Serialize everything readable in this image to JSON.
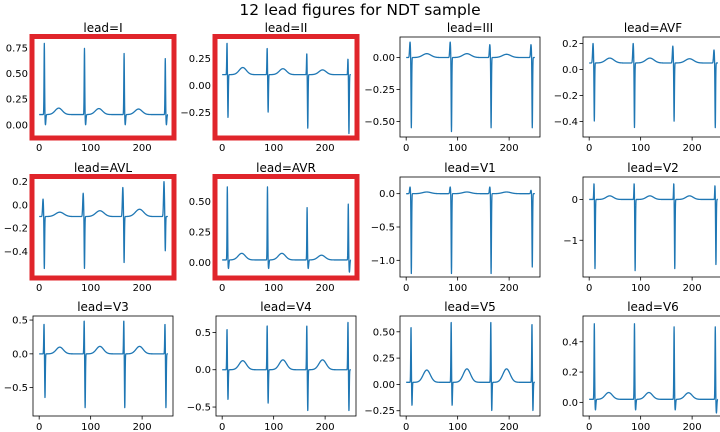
{
  "figure": {
    "title": "12 lead figures for NDT sample",
    "line_color": "#1f77b4",
    "highlight_color": "#e0252b"
  },
  "chart_data": [
    {
      "type": "line",
      "title": "lead=I",
      "highlighted": true,
      "xlim": [
        -12,
        260
      ],
      "ylim": [
        -0.12,
        0.86
      ],
      "xticks": [
        0,
        100,
        200
      ],
      "yticks": [
        0,
        0.25,
        0.5,
        0.75
      ],
      "ytick_labels": [
        "0.00",
        "0.25",
        "0.50",
        "0.75"
      ],
      "baseline": 0.1,
      "qrs_pattern": "R",
      "beats": [
        {
          "x": 10,
          "peak": 0.8,
          "trough": 0.0
        },
        {
          "x": 88,
          "peak": 0.75,
          "trough": 0.0
        },
        {
          "x": 165,
          "peak": 0.7,
          "trough": 0.0
        },
        {
          "x": 245,
          "peak": 0.65,
          "trough": 0.0
        }
      ]
    },
    {
      "type": "line",
      "title": "lead=II",
      "highlighted": true,
      "xlim": [
        -12,
        260
      ],
      "ylim": [
        -0.48,
        0.45
      ],
      "xticks": [
        0,
        100,
        200
      ],
      "yticks": [
        -0.25,
        0,
        0.25
      ],
      "ytick_labels": [
        "−0.25",
        "0.00",
        "0.25"
      ],
      "baseline": 0.1,
      "qrs_pattern": "RS",
      "beats": [
        {
          "x": 10,
          "peak": 0.4,
          "trough": -0.3
        },
        {
          "x": 88,
          "peak": 0.35,
          "trough": -0.25
        },
        {
          "x": 165,
          "peak": 0.3,
          "trough": -0.4
        },
        {
          "x": 245,
          "peak": 0.25,
          "trough": -0.45
        }
      ]
    },
    {
      "type": "line",
      "title": "lead=III",
      "highlighted": false,
      "xlim": [
        -12,
        260
      ],
      "ylim": [
        -0.62,
        0.16
      ],
      "xticks": [
        0,
        100,
        200
      ],
      "yticks": [
        -0.5,
        -0.25,
        0
      ],
      "ytick_labels": [
        "−0.50",
        "−0.25",
        "0.00"
      ],
      "baseline": 0.0,
      "qrs_pattern": "QS",
      "beats": [
        {
          "x": 10,
          "peak": 0.12,
          "trough": -0.55
        },
        {
          "x": 88,
          "peak": 0.12,
          "trough": -0.58
        },
        {
          "x": 165,
          "peak": 0.1,
          "trough": -0.55
        },
        {
          "x": 245,
          "peak": 0.1,
          "trough": -0.55
        }
      ]
    },
    {
      "type": "line",
      "title": "lead=AVF",
      "highlighted": false,
      "xlim": [
        -12,
        260
      ],
      "ylim": [
        -0.52,
        0.25
      ],
      "xticks": [
        0,
        100,
        200
      ],
      "yticks": [
        -0.4,
        -0.2,
        0,
        0.2
      ],
      "ytick_labels": [
        "−0.4",
        "−0.2",
        "0.0",
        "0.2"
      ],
      "baseline": 0.05,
      "qrs_pattern": "QS",
      "beats": [
        {
          "x": 10,
          "peak": 0.2,
          "trough": -0.4
        },
        {
          "x": 88,
          "peak": 0.2,
          "trough": -0.45
        },
        {
          "x": 165,
          "peak": 0.18,
          "trough": -0.4
        },
        {
          "x": 245,
          "peak": 0.15,
          "trough": -0.45
        }
      ]
    },
    {
      "type": "line",
      "title": "lead=AVL",
      "highlighted": true,
      "xlim": [
        -12,
        260
      ],
      "ylim": [
        -0.62,
        0.24
      ],
      "xticks": [
        0,
        100,
        200
      ],
      "yticks": [
        -0.4,
        -0.2,
        0,
        0.2
      ],
      "ytick_labels": [
        "−0.4",
        "−0.2",
        "0.0",
        "0.2"
      ],
      "baseline": -0.1,
      "qrs_pattern": "QS",
      "beats": [
        {
          "x": 10,
          "peak": 0.05,
          "trough": -0.55
        },
        {
          "x": 88,
          "peak": 0.1,
          "trough": -0.55
        },
        {
          "x": 165,
          "peak": 0.15,
          "trough": -0.5
        },
        {
          "x": 245,
          "peak": 0.2,
          "trough": -0.4
        }
      ]
    },
    {
      "type": "line",
      "title": "lead=AVR",
      "highlighted": true,
      "xlim": [
        -12,
        260
      ],
      "ylim": [
        -0.12,
        0.7
      ],
      "xticks": [
        0,
        100,
        200
      ],
      "yticks": [
        0,
        0.25,
        0.5
      ],
      "ytick_labels": [
        "0.00",
        "0.25",
        "0.50"
      ],
      "baseline": 0.02,
      "qrs_pattern": "R",
      "beats": [
        {
          "x": 10,
          "peak": 0.62,
          "trough": -0.05
        },
        {
          "x": 88,
          "peak": 0.62,
          "trough": -0.05
        },
        {
          "x": 165,
          "peak": 0.45,
          "trough": -0.05
        },
        {
          "x": 245,
          "peak": 0.48,
          "trough": -0.08
        }
      ]
    },
    {
      "type": "line",
      "title": "lead=V1",
      "highlighted": false,
      "xlim": [
        -12,
        260
      ],
      "ylim": [
        -1.25,
        0.25
      ],
      "xticks": [
        0,
        100,
        200
      ],
      "yticks": [
        -1,
        -0.5,
        0
      ],
      "ytick_labels": [
        "−1.0",
        "−0.5",
        "0.0"
      ],
      "baseline": 0.0,
      "qrs_pattern": "QS",
      "beats": [
        {
          "x": 10,
          "peak": 0.1,
          "trough": -1.2
        },
        {
          "x": 88,
          "peak": 0.1,
          "trough": -1.2
        },
        {
          "x": 165,
          "peak": 0.1,
          "trough": -1.2
        },
        {
          "x": 245,
          "peak": 0.05,
          "trough": -1.1
        }
      ]
    },
    {
      "type": "line",
      "title": "lead=V2",
      "highlighted": false,
      "xlim": [
        -12,
        260
      ],
      "ylim": [
        -1.9,
        0.55
      ],
      "xticks": [
        0,
        100,
        200
      ],
      "yticks": [
        -1,
        0
      ],
      "ytick_labels": [
        "−1",
        "0"
      ],
      "baseline": 0.0,
      "qrs_pattern": "RS",
      "beats": [
        {
          "x": 10,
          "peak": 0.4,
          "trough": -1.7
        },
        {
          "x": 88,
          "peak": 0.4,
          "trough": -1.75
        },
        {
          "x": 165,
          "peak": 0.4,
          "trough": -1.7
        },
        {
          "x": 245,
          "peak": 0.35,
          "trough": -1.6
        }
      ]
    },
    {
      "type": "line",
      "title": "lead=V3",
      "highlighted": false,
      "xlim": [
        -12,
        260
      ],
      "ylim": [
        -0.92,
        0.56
      ],
      "xticks": [
        0,
        100,
        200
      ],
      "yticks": [
        -0.5,
        0,
        0.5
      ],
      "ytick_labels": [
        "−0.5",
        "0.0",
        "0.5"
      ],
      "baseline": 0.0,
      "qrs_pattern": "RS",
      "beats": [
        {
          "x": 10,
          "peak": 0.45,
          "trough": -0.65
        },
        {
          "x": 88,
          "peak": 0.5,
          "trough": -0.8
        },
        {
          "x": 165,
          "peak": 0.5,
          "trough": -0.8
        },
        {
          "x": 245,
          "peak": 0.45,
          "trough": -0.8
        }
      ]
    },
    {
      "type": "line",
      "title": "lead=V4",
      "highlighted": false,
      "xlim": [
        -12,
        260
      ],
      "ylim": [
        -0.62,
        0.72
      ],
      "xticks": [
        0,
        100,
        200
      ],
      "yticks": [
        -0.5,
        0,
        0.5
      ],
      "ytick_labels": [
        "−0.5",
        "0.0",
        "0.5"
      ],
      "baseline": 0.0,
      "qrs_pattern": "RS",
      "beats": [
        {
          "x": 10,
          "peak": 0.55,
          "trough": -0.4
        },
        {
          "x": 88,
          "peak": 0.6,
          "trough": -0.45
        },
        {
          "x": 165,
          "peak": 0.6,
          "trough": -0.55
        },
        {
          "x": 245,
          "peak": 0.65,
          "trough": -0.55
        }
      ]
    },
    {
      "type": "line",
      "title": "lead=V5",
      "highlighted": false,
      "xlim": [
        -12,
        260
      ],
      "ylim": [
        -0.3,
        0.65
      ],
      "xticks": [
        0,
        100,
        200
      ],
      "yticks": [
        -0.25,
        0,
        0.25,
        0.5
      ],
      "ytick_labels": [
        "−0.25",
        "0.00",
        "0.25",
        "0.50"
      ],
      "baseline": 0.02,
      "qrs_pattern": "RS",
      "beats": [
        {
          "x": 10,
          "peak": 0.55,
          "trough": -0.2
        },
        {
          "x": 88,
          "peak": 0.6,
          "trough": -0.2
        },
        {
          "x": 165,
          "peak": 0.6,
          "trough": -0.25
        },
        {
          "x": 245,
          "peak": 0.58,
          "trough": -0.25
        }
      ]
    },
    {
      "type": "line",
      "title": "lead=V6",
      "highlighted": false,
      "xlim": [
        -12,
        260
      ],
      "ylim": [
        -0.09,
        0.57
      ],
      "xticks": [
        0,
        100,
        200
      ],
      "yticks": [
        0,
        0.2,
        0.4
      ],
      "ytick_labels": [
        "0.0",
        "0.2",
        "0.4"
      ],
      "baseline": 0.02,
      "qrs_pattern": "R",
      "beats": [
        {
          "x": 10,
          "peak": 0.52,
          "trough": -0.05
        },
        {
          "x": 88,
          "peak": 0.52,
          "trough": -0.05
        },
        {
          "x": 165,
          "peak": 0.5,
          "trough": -0.05
        },
        {
          "x": 245,
          "peak": 0.5,
          "trough": -0.07
        }
      ]
    }
  ]
}
